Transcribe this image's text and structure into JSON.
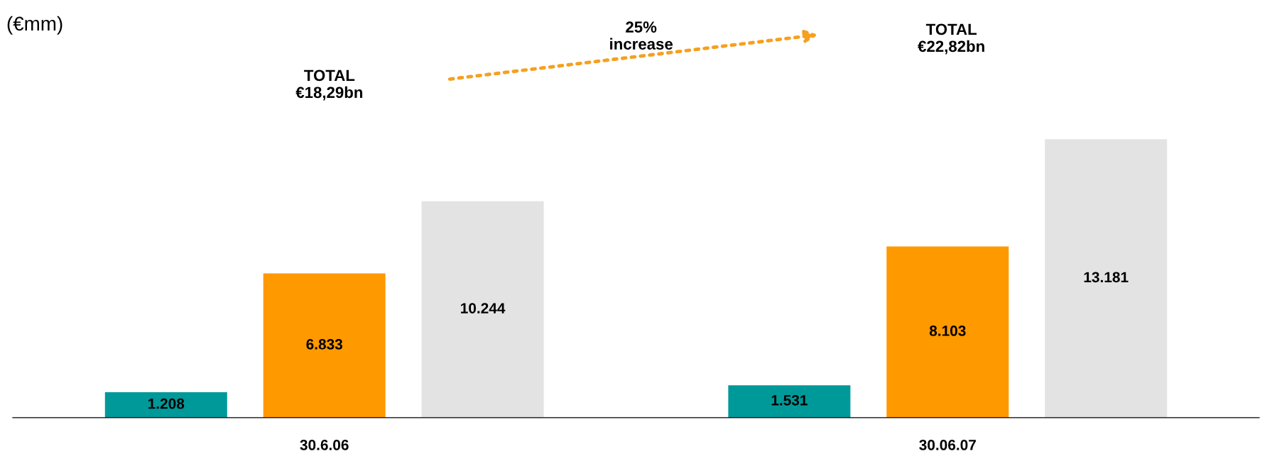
{
  "chart_data": {
    "type": "bar",
    "categories": [
      "30.6.06",
      "30.06.07"
    ],
    "series": [
      {
        "color": "#009999",
        "values": [
          1208,
          1531
        ],
        "value_labels": [
          "1.208",
          "1.531"
        ]
      },
      {
        "color": "#ff9900",
        "values": [
          6833,
          8103
        ],
        "value_labels": [
          "6.833",
          "8.103"
        ]
      },
      {
        "color": "#e3e3e3",
        "values": [
          10244,
          13181
        ],
        "value_labels": [
          "10.244",
          "13.181"
        ]
      }
    ],
    "annotations": [
      "(€mm)",
      "TOTAL\n€18,29bn",
      "25%\nincrease",
      "TOTAL\n€22,82bn"
    ],
    "grid": false
  }
}
